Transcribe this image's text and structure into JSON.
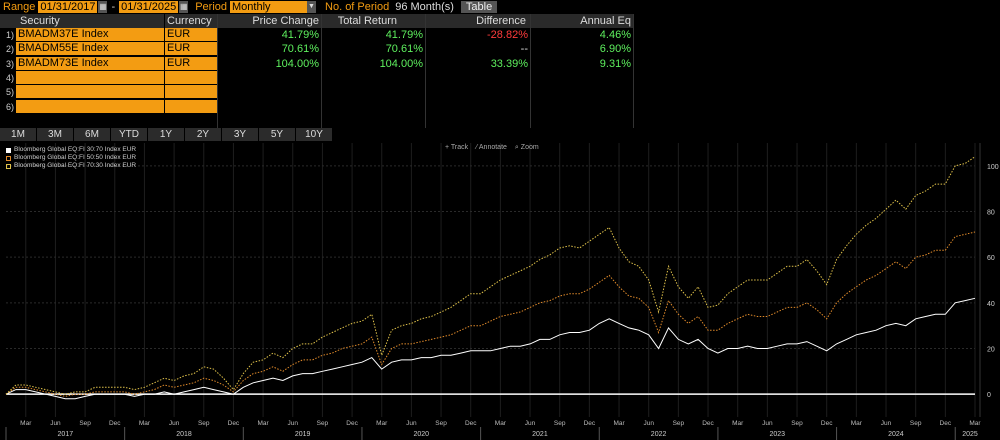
{
  "toolbar": {
    "range_label": "Range",
    "start_date": "01/31/2017",
    "end_date": "01/31/2025",
    "dash": "-",
    "period_label": "Period",
    "period_value": "Monthly",
    "num_period_label": "No. of Period",
    "num_period_value": "96 Month(s)",
    "table_button": "Table"
  },
  "table": {
    "headers": [
      "Security",
      "Currency",
      "Price Change",
      "Total Return",
      "Difference",
      "Annual Eq"
    ],
    "rows": [
      {
        "num": "1)",
        "security": "BMADM37E Index",
        "currency": "EUR",
        "price_change": "41.79%",
        "total_return": "41.79%",
        "difference": "-28.82%",
        "annual_eq": "4.46%"
      },
      {
        "num": "2)",
        "security": "BMADM55E Index",
        "currency": "EUR",
        "price_change": "70.61%",
        "total_return": "70.61%",
        "difference": "--",
        "annual_eq": "6.90%"
      },
      {
        "num": "3)",
        "security": "BMADM73E Index",
        "currency": "EUR",
        "price_change": "104.00%",
        "total_return": "104.00%",
        "difference": "33.39%",
        "annual_eq": "9.31%"
      },
      {
        "num": "4)",
        "security": "",
        "currency": "",
        "price_change": "",
        "total_return": "",
        "difference": "",
        "annual_eq": ""
      },
      {
        "num": "5)",
        "security": "",
        "currency": "",
        "price_change": "",
        "total_return": "",
        "difference": "",
        "annual_eq": ""
      },
      {
        "num": "6)",
        "security": "",
        "currency": "",
        "price_change": "",
        "total_return": "",
        "difference": "",
        "annual_eq": ""
      }
    ]
  },
  "period_buttons": [
    "1M",
    "3M",
    "6M",
    "YTD",
    "1Y",
    "2Y",
    "3Y",
    "5Y",
    "10Y"
  ],
  "chart_tools": [
    "Track",
    "Annotate",
    "Zoom"
  ],
  "chart_data": {
    "type": "line",
    "legend": [
      {
        "name": "Bloomberg Global EQ:FI 30:70 Index EUR",
        "color": "#ffffff"
      },
      {
        "name": "Bloomberg Global EQ:FI 50:50 Index EUR",
        "color": "#e08a2a"
      },
      {
        "name": "Bloomberg Global EQ:FI 70:30 Index EUR",
        "color": "#e0c24a"
      }
    ],
    "x_start": "2017-01",
    "ylim": [
      -10,
      110
    ],
    "yticks": [
      0,
      20,
      40,
      60,
      80,
      100
    ],
    "month_ticks": [
      "Mar",
      "Jun",
      "Sep",
      "Dec"
    ],
    "years": [
      "2017",
      "2018",
      "2019",
      "2020",
      "2021",
      "2022",
      "2023",
      "2024",
      "2025"
    ],
    "series": [
      {
        "name": "Bloomberg Global EQ:FI 30:70 Index EUR",
        "color": "#ffffff",
        "values": [
          0,
          2,
          2,
          1,
          0,
          -1,
          -2,
          -2,
          -1,
          0,
          0,
          0,
          0,
          -1,
          0,
          0,
          1,
          0,
          1,
          2,
          3,
          2,
          1,
          0,
          3,
          5,
          6,
          7,
          6,
          8,
          9,
          9,
          10,
          11,
          12,
          13,
          14,
          16,
          11,
          14,
          15,
          15,
          16,
          16,
          17,
          17,
          18,
          19,
          19,
          19,
          20,
          21,
          21,
          22,
          24,
          24,
          26,
          27,
          27,
          28,
          31,
          33,
          31,
          29,
          28,
          26,
          20,
          29,
          24,
          22,
          24,
          20,
          18,
          20,
          20,
          21,
          20,
          20,
          21,
          22,
          22,
          23,
          21,
          19,
          22,
          24,
          26,
          27,
          28,
          30,
          31,
          30,
          33,
          34,
          35,
          35,
          40,
          41,
          42
        ]
      },
      {
        "name": "Bloomberg Global EQ:FI 50:50 Index EUR",
        "color": "#e08a2a",
        "values": [
          0,
          3,
          3,
          2,
          1,
          0,
          -1,
          0,
          0,
          1,
          1,
          1,
          1,
          0,
          1,
          2,
          4,
          3,
          4,
          5,
          7,
          6,
          4,
          1,
          6,
          9,
          10,
          12,
          10,
          13,
          15,
          15,
          17,
          18,
          20,
          21,
          22,
          25,
          13,
          20,
          22,
          22,
          23,
          24,
          25,
          26,
          28,
          30,
          30,
          32,
          34,
          35,
          36,
          38,
          40,
          41,
          43,
          44,
          44,
          46,
          49,
          52,
          47,
          43,
          42,
          38,
          27,
          41,
          35,
          31,
          34,
          28,
          28,
          31,
          33,
          35,
          34,
          34,
          36,
          38,
          38,
          40,
          37,
          33,
          40,
          44,
          47,
          50,
          52,
          55,
          58,
          55,
          60,
          61,
          63,
          63,
          69,
          70,
          71
        ]
      },
      {
        "name": "Bloomberg Global EQ:FI 70:30 Index EUR",
        "color": "#e0c24a",
        "values": [
          0,
          4,
          4,
          3,
          2,
          1,
          0,
          1,
          1,
          3,
          3,
          3,
          3,
          2,
          3,
          5,
          7,
          6,
          8,
          9,
          12,
          11,
          7,
          2,
          9,
          14,
          15,
          18,
          16,
          20,
          22,
          22,
          25,
          27,
          29,
          31,
          32,
          35,
          17,
          28,
          30,
          31,
          33,
          34,
          36,
          38,
          41,
          44,
          44,
          47,
          50,
          52,
          54,
          56,
          59,
          61,
          64,
          65,
          64,
          67,
          70,
          73,
          64,
          58,
          56,
          50,
          36,
          56,
          47,
          42,
          47,
          38,
          39,
          44,
          47,
          50,
          50,
          50,
          53,
          56,
          56,
          59,
          54,
          48,
          59,
          65,
          70,
          74,
          77,
          81,
          85,
          81,
          87,
          89,
          92,
          92,
          100,
          101,
          104
        ]
      }
    ]
  }
}
